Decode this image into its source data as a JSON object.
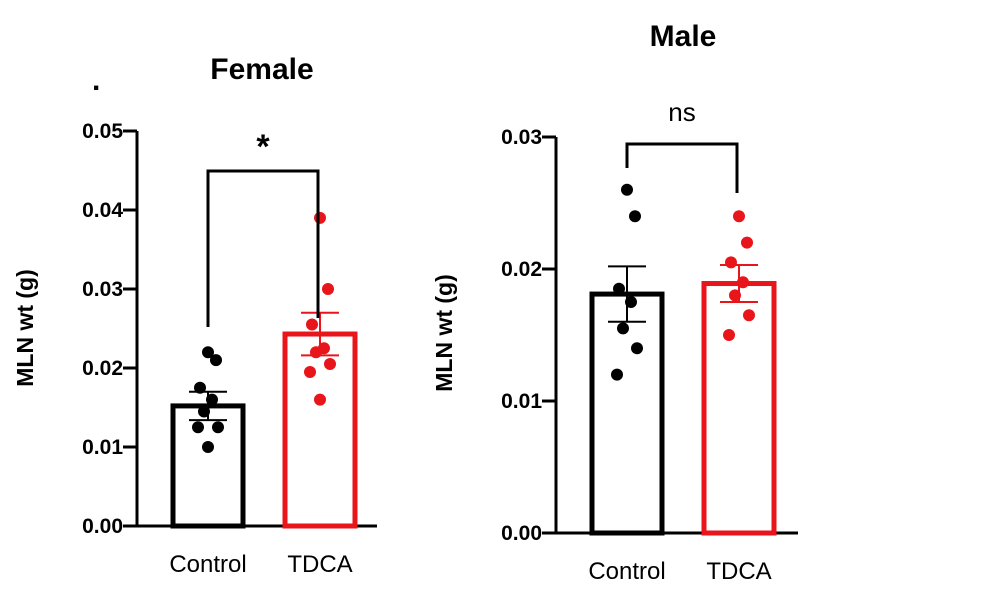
{
  "chart_data": [
    {
      "type": "bar",
      "title": "Female",
      "ylabel": "MLN wt (g)",
      "ylim": [
        0,
        0.05
      ],
      "yticks": [
        "0.00",
        "0.01",
        "0.02",
        "0.03",
        "0.04",
        "0.05"
      ],
      "categories": [
        "Control",
        "TDCA"
      ],
      "colors": [
        "#000000",
        "#e8151b"
      ],
      "means": [
        0.0152,
        0.0243
      ],
      "sem": [
        0.0018,
        0.0027
      ],
      "points": [
        [
          0.022,
          0.021,
          0.0175,
          0.016,
          0.0145,
          0.0125,
          0.0125,
          0.01
        ],
        [
          0.039,
          0.03,
          0.0255,
          0.0225,
          0.022,
          0.0205,
          0.0195,
          0.016
        ]
      ],
      "significance": "*"
    },
    {
      "type": "bar",
      "title": "Male",
      "ylabel": "MLN wt (g)",
      "ylim": [
        0,
        0.03
      ],
      "yticks": [
        "0.00",
        "0.01",
        "0.02",
        "0.03"
      ],
      "categories": [
        "Control",
        "TDCA"
      ],
      "colors": [
        "#000000",
        "#e8151b"
      ],
      "means": [
        0.0181,
        0.0189
      ],
      "sem": [
        0.0021,
        0.0014
      ],
      "points": [
        [
          0.026,
          0.024,
          0.0185,
          0.0175,
          0.0155,
          0.014,
          0.012
        ],
        [
          0.024,
          0.022,
          0.0205,
          0.019,
          0.018,
          0.0165,
          0.015
        ]
      ],
      "significance": "ns"
    }
  ],
  "stray_mark": "."
}
